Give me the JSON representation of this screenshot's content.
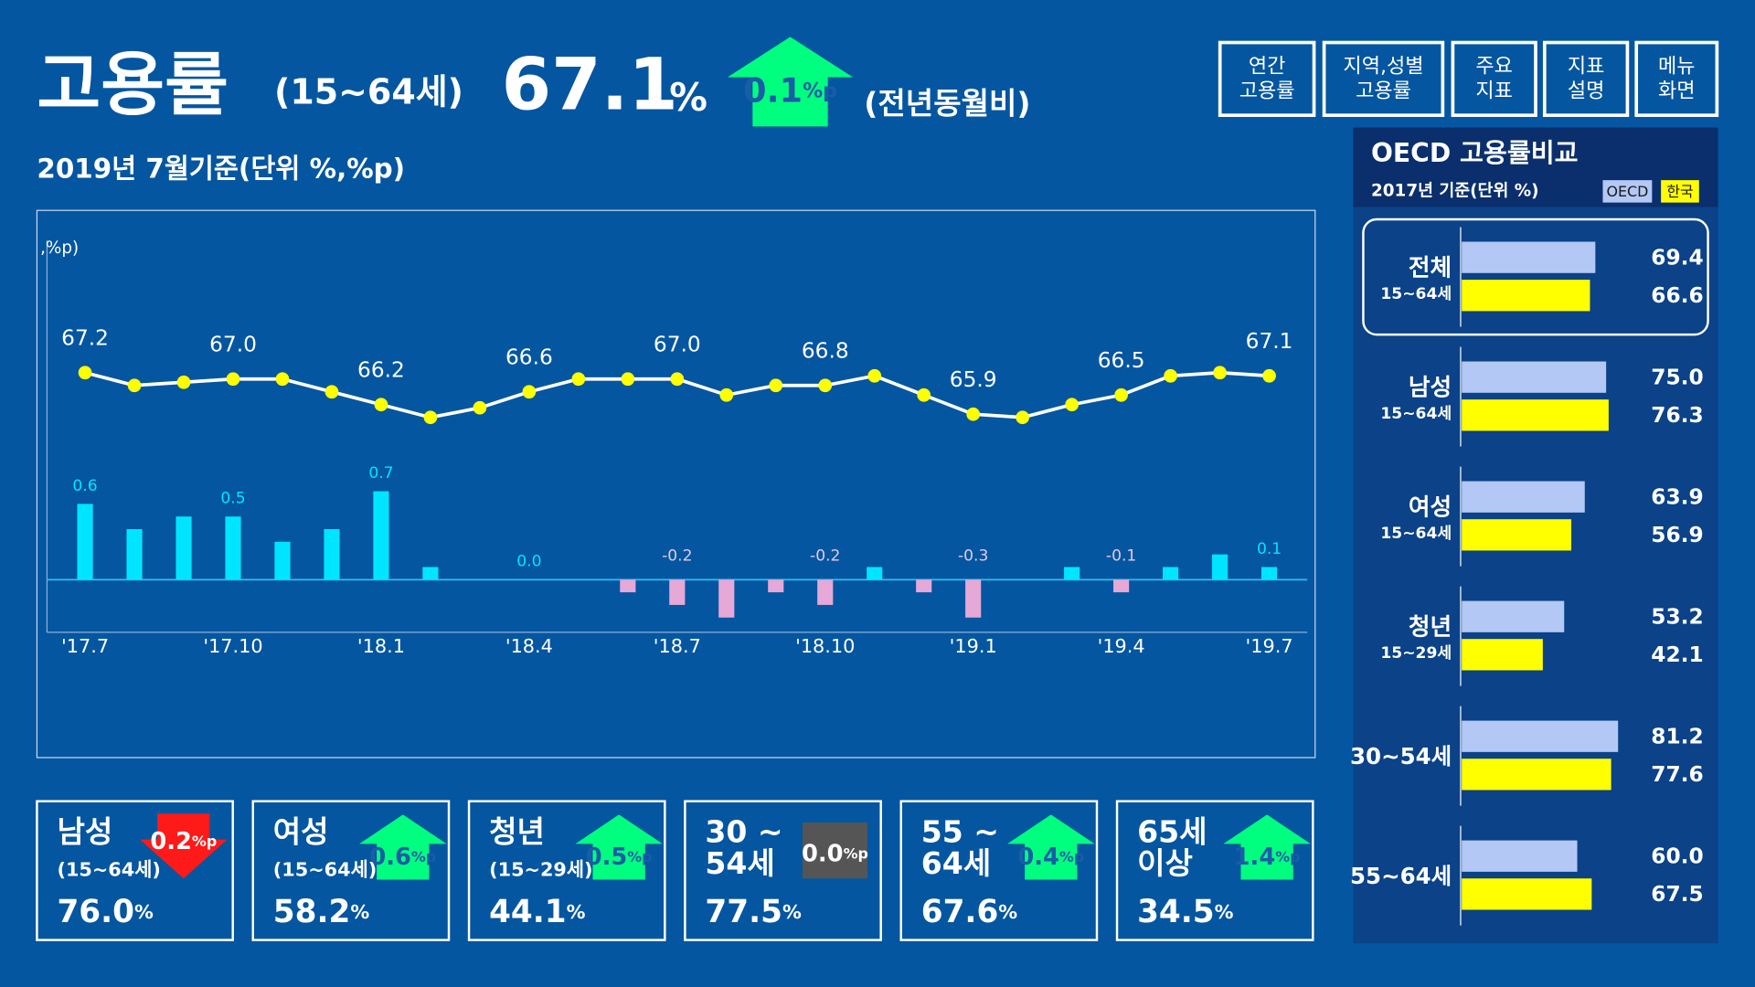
{
  "header": {
    "title": "고용률",
    "age": "(15~64세)",
    "value": "67.1",
    "unit": "%",
    "change": "0.1",
    "change_unit": "%p",
    "note": "(전년동월비)",
    "subtitle": "2019년 7월기준(단위 %,%p)"
  },
  "buttons": [
    {
      "lines": [
        "연간",
        "고용률"
      ]
    },
    {
      "lines": [
        "지역,성별",
        "고용률"
      ]
    },
    {
      "lines": [
        "주요",
        "지표"
      ]
    },
    {
      "lines": [
        "지표",
        "설명"
      ]
    },
    {
      "lines": [
        "메뉴",
        "화면"
      ]
    }
  ],
  "chart_data": {
    "type": "line",
    "y_label": ",%p)",
    "categories": [
      "'17.7",
      null,
      null,
      "'17.10",
      null,
      null,
      "'18.1",
      null,
      null,
      "'18.4",
      null,
      null,
      "'18.7",
      null,
      null,
      "'18.10",
      null,
      null,
      "'19.1",
      null,
      null,
      "'19.4",
      null,
      null,
      "'19.7"
    ],
    "series": [
      {
        "type": "line",
        "color": "#ffff00",
        "values": [
          67.2,
          66.8,
          66.9,
          67.0,
          67.0,
          66.6,
          66.2,
          65.8,
          66.1,
          66.6,
          67.0,
          67.0,
          67.0,
          66.5,
          66.8,
          66.8,
          67.1,
          66.5,
          65.9,
          65.8,
          66.2,
          66.5,
          67.1,
          67.2,
          67.1
        ],
        "value_labels": [
          "67.2",
          null,
          null,
          "67.0",
          null,
          null,
          "66.2",
          null,
          null,
          "66.6",
          null,
          null,
          "67.0",
          null,
          null,
          "66.8",
          null,
          null,
          "65.9",
          null,
          null,
          "66.5",
          null,
          null,
          "67.1"
        ]
      },
      {
        "type": "bar",
        "color": "#00e5ff",
        "negative_color": "#e6a8d7",
        "values": [
          0.6,
          0.4,
          0.5,
          0.5,
          0.3,
          0.4,
          0.7,
          0.1,
          0,
          0,
          0,
          -0.1,
          -0.2,
          -0.3,
          -0.1,
          -0.2,
          0.1,
          -0.1,
          -0.3,
          0,
          0.1,
          -0.1,
          0.1,
          0.2,
          0.1
        ],
        "value_labels": [
          "0.6",
          null,
          null,
          "0.5",
          null,
          null,
          "0.7",
          null,
          null,
          "0.0",
          null,
          null,
          "-0.2",
          null,
          null,
          "-0.2",
          null,
          null,
          "-0.3",
          null,
          null,
          "-0.1",
          null,
          null,
          "0.1"
        ]
      }
    ]
  },
  "cards": [
    {
      "name": [
        "남성"
      ],
      "age": "(15~64세)",
      "value": "76.0",
      "unit": "%",
      "change": "0.2",
      "change_unit": "%p",
      "direction": "down"
    },
    {
      "name": [
        "여성"
      ],
      "age": "(15~64세)",
      "value": "58.2",
      "unit": "%",
      "change": "0.6",
      "change_unit": "%p",
      "direction": "up"
    },
    {
      "name": [
        "청년"
      ],
      "age": "(15~29세)",
      "value": "44.1",
      "unit": "%",
      "change": "0.5",
      "change_unit": "%p",
      "direction": "up"
    },
    {
      "name": [
        "30 ~",
        "54세"
      ],
      "value": "77.5",
      "unit": "%",
      "change": "0.0",
      "change_unit": "%p",
      "direction": "flat"
    },
    {
      "name": [
        "55 ~",
        "64세"
      ],
      "value": "67.6",
      "unit": "%",
      "change": "0.4",
      "change_unit": "%p",
      "direction": "up"
    },
    {
      "name": [
        "65세",
        "이상"
      ],
      "value": "34.5",
      "unit": "%",
      "change": "1.4",
      "change_unit": "%p",
      "direction": "up"
    }
  ],
  "oecd": {
    "title": "OECD 고용률비교",
    "subtitle": "2017년 기준(단위 %)",
    "legend": [
      {
        "name": "OECD",
        "color": "#b4c8f5"
      },
      {
        "name": "한국",
        "color": "#ffff00"
      }
    ],
    "groups": [
      {
        "name": "전체",
        "age": "15~64세",
        "values": [
          69.4,
          66.6
        ],
        "value_labels": [
          "69.4",
          "66.6"
        ]
      },
      {
        "name": "남성",
        "age": "15~64세",
        "values": [
          75.0,
          76.3
        ],
        "value_labels": [
          "75.0",
          "76.3"
        ]
      },
      {
        "name": "여성",
        "age": "15~64세",
        "values": [
          63.9,
          56.9
        ],
        "value_labels": [
          "63.9",
          "56.9"
        ]
      },
      {
        "name": "청년",
        "age": "15~29세",
        "values": [
          53.2,
          42.1
        ],
        "value_labels": [
          "53.2",
          "42.1"
        ]
      },
      {
        "name": "30~54세",
        "values": [
          81.2,
          77.6
        ],
        "value_labels": [
          "81.2",
          "77.6"
        ]
      },
      {
        "name": "55~64세",
        "values": [
          60.0,
          67.5
        ],
        "value_labels": [
          "60.0",
          "67.5"
        ]
      }
    ]
  }
}
